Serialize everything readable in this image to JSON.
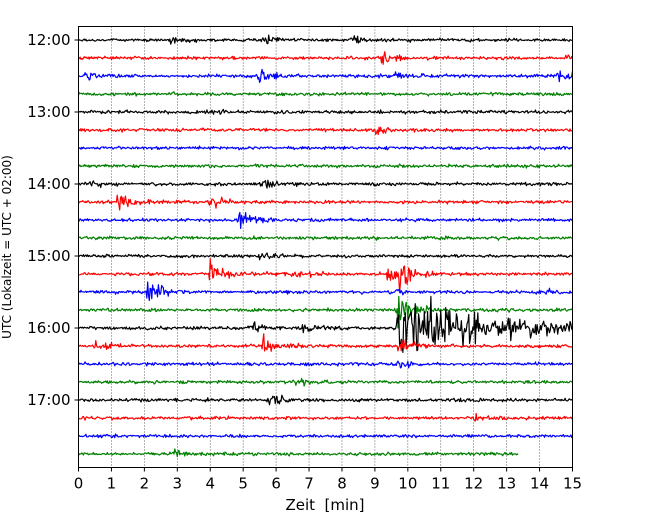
{
  "chart_data": {
    "type": "line",
    "subtype": "helicorder-seismogram",
    "title": "",
    "xlabel": "Zeit  [min]",
    "ylabel": "UTC (Lokalzeit = UTC + 02:00)",
    "xlim": [
      0,
      15
    ],
    "x_ticks": [
      "0",
      "1",
      "2",
      "3",
      "4",
      "5",
      "6",
      "7",
      "8",
      "9",
      "10",
      "11",
      "12",
      "13",
      "14",
      "15"
    ],
    "y_ticks": [
      {
        "label": "12:00",
        "trace": 0
      },
      {
        "label": "13:00",
        "trace": 4
      },
      {
        "label": "14:00",
        "trace": 8
      },
      {
        "label": "15:00",
        "trace": 12
      },
      {
        "label": "16:00",
        "trace": 16
      },
      {
        "label": "17:00",
        "trace": 20
      }
    ],
    "grid": {
      "x": "dotted",
      "y": "none"
    },
    "line_colors": [
      "#000000",
      "#ff0000",
      "#0000ff",
      "#008000"
    ],
    "trace_minutes": 15,
    "last_trace_end_min": 13.35,
    "traces": [
      {
        "start": "12:00",
        "events": [
          {
            "t": 2.8,
            "a": 0.6
          },
          {
            "t": 5.6,
            "a": 0.9
          },
          {
            "t": 8.3,
            "a": 1.1
          }
        ]
      },
      {
        "start": "12:15",
        "events": [
          {
            "t": 9.2,
            "a": 1.7
          },
          {
            "t": 14.8,
            "a": 0.9
          }
        ]
      },
      {
        "start": "12:30",
        "events": [
          {
            "t": 0.2,
            "a": 0.7
          },
          {
            "t": 5.5,
            "a": 1.8
          },
          {
            "t": 9.6,
            "a": 1.0
          },
          {
            "t": 14.6,
            "a": 2.3
          }
        ]
      },
      {
        "start": "12:45",
        "events": []
      },
      {
        "start": "13:00",
        "events": [
          {
            "t": 3.9,
            "a": 1.0
          }
        ]
      },
      {
        "start": "13:15",
        "events": [
          {
            "t": 8.9,
            "a": 1.2
          }
        ]
      },
      {
        "start": "13:30",
        "events": []
      },
      {
        "start": "13:45",
        "events": []
      },
      {
        "start": "14:00",
        "events": [
          {
            "t": 0.4,
            "a": 0.6
          },
          {
            "t": 5.6,
            "a": 1.0
          }
        ]
      },
      {
        "start": "14:15",
        "events": [
          {
            "t": 1.2,
            "a": 2.7
          },
          {
            "t": 4.0,
            "a": 1.5
          }
        ]
      },
      {
        "start": "14:30",
        "events": [
          {
            "t": 4.9,
            "a": 3.0
          }
        ]
      },
      {
        "start": "14:45",
        "events": []
      },
      {
        "start": "15:00",
        "events": [
          {
            "t": 5.5,
            "a": 0.7
          }
        ]
      },
      {
        "start": "15:15",
        "events": [
          {
            "t": 4.0,
            "a": 3.0
          },
          {
            "t": 6.5,
            "a": 0.9
          },
          {
            "t": 9.4,
            "a": 1.8
          },
          {
            "t": 9.75,
            "a": 4.0
          }
        ]
      },
      {
        "start": "15:30",
        "events": [
          {
            "t": 2.1,
            "a": 3.3
          },
          {
            "t": 9.5,
            "a": 0.9
          },
          {
            "t": 14.2,
            "a": 0.6
          }
        ]
      },
      {
        "start": "15:45",
        "events": [
          {
            "t": 9.7,
            "a": 4.5
          }
        ]
      },
      {
        "start": "16:00",
        "events": [
          {
            "t": 5.3,
            "a": 1.0
          },
          {
            "t": 6.8,
            "a": 0.9
          },
          {
            "t": 9.7,
            "a": 7.0,
            "long": true
          }
        ]
      },
      {
        "start": "16:15",
        "events": [
          {
            "t": 0.5,
            "a": 1.0
          },
          {
            "t": 5.6,
            "a": 2.1
          },
          {
            "t": 9.7,
            "a": 2.0
          }
        ]
      },
      {
        "start": "16:30",
        "events": [
          {
            "t": 9.7,
            "a": 0.8
          }
        ]
      },
      {
        "start": "16:45",
        "events": [
          {
            "t": 6.6,
            "a": 0.8
          }
        ]
      },
      {
        "start": "17:00",
        "events": [
          {
            "t": 5.8,
            "a": 2.2
          }
        ]
      },
      {
        "start": "17:15",
        "events": [
          {
            "t": 12.0,
            "a": 0.6
          }
        ]
      },
      {
        "start": "17:30",
        "events": []
      },
      {
        "start": "17:45",
        "events": [
          {
            "t": 2.9,
            "a": 0.7
          }
        ]
      }
    ]
  }
}
